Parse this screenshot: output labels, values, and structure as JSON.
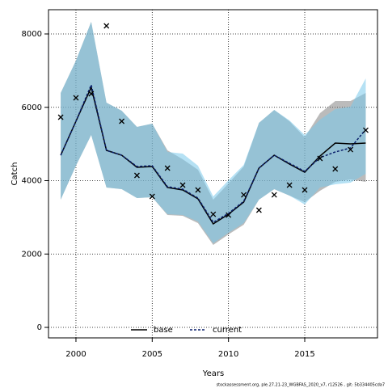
{
  "chart_data": {
    "type": "line",
    "xlabel": "Years",
    "ylabel": "Catch",
    "footer": "stockassessment.org, ple.27.21-23_WGBFAS_2020_v7, r12526 , git: 5b334405cda7",
    "x": [
      1999,
      2000,
      2001,
      2002,
      2003,
      2004,
      2005,
      2006,
      2007,
      2008,
      2009,
      2010,
      2011,
      2012,
      2013,
      2014,
      2015,
      2016,
      2017,
      2018,
      2019
    ],
    "series": [
      {
        "name": "base",
        "color": "#000000",
        "band_color": "rgba(120,120,120,0.5)",
        "dash": false,
        "values": [
          4694,
          5620,
          6545,
          4826,
          4694,
          4364,
          4386,
          3813,
          3747,
          3504,
          2821,
          3085,
          3416,
          4342,
          4694,
          4452,
          4231,
          4672,
          5025,
          5003,
          5025
        ],
        "upper": [
          6391,
          7273,
          8331,
          6127,
          5906,
          5466,
          5554,
          4826,
          4584,
          4298,
          3482,
          3923,
          4386,
          5576,
          5928,
          5620,
          5179,
          5840,
          6171,
          6171,
          6391
        ],
        "lower": [
          3482,
          4408,
          5245,
          3813,
          3769,
          3526,
          3548,
          3063,
          3041,
          2843,
          2248,
          2534,
          2799,
          3482,
          3769,
          3592,
          3416,
          3724,
          3967,
          4033,
          3967
        ]
      },
      {
        "name": "current",
        "color": "#0a1f6b",
        "band_color": "rgba(120,200,235,0.55)",
        "dash": true,
        "values": [
          4694,
          5620,
          6611,
          4826,
          4694,
          4386,
          4408,
          3835,
          3769,
          3526,
          2865,
          3107,
          3438,
          4342,
          4694,
          4474,
          4253,
          4628,
          4782,
          4892,
          5399
        ],
        "upper": [
          6391,
          7273,
          8331,
          6127,
          5906,
          5466,
          5554,
          4782,
          4738,
          4408,
          3570,
          4011,
          4430,
          5576,
          5928,
          5642,
          5245,
          5664,
          5950,
          6017,
          6788
        ],
        "lower": [
          3482,
          4408,
          5245,
          3813,
          3769,
          3526,
          3548,
          3085,
          3063,
          2887,
          2292,
          2578,
          2843,
          3482,
          3769,
          3592,
          3350,
          3813,
          3901,
          3945,
          4187
        ]
      }
    ],
    "observed": {
      "color": "#000000",
      "values": [
        5730,
        6259,
        6369,
        8220,
        5620,
        4143,
        3570,
        4342,
        3879,
        3747,
        3085,
        3063,
        3614,
        3196,
        3614,
        3879,
        3747,
        4606,
        4320,
        4848,
        5377
      ]
    },
    "xlim": [
      1998.2,
      2019.77
    ],
    "ylim": [
      -286,
      8661
    ],
    "xticks": [
      2000,
      2005,
      2010,
      2015
    ],
    "yticks": [
      0,
      2000,
      4000,
      6000,
      8000
    ],
    "grid": true,
    "legend": "bottom"
  }
}
